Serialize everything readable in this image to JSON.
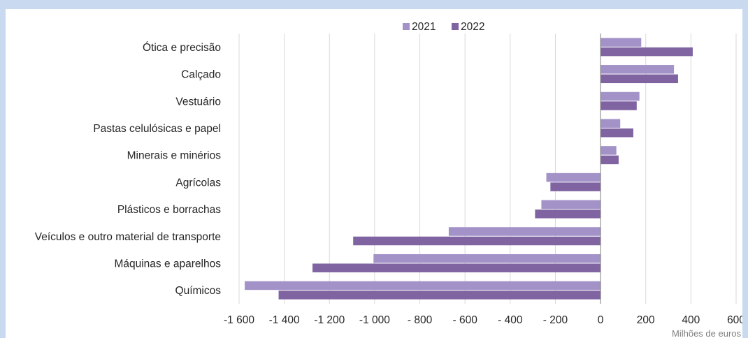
{
  "chart_data": {
    "type": "bar",
    "orientation": "horizontal",
    "categories": [
      "Ótica e precisão",
      "Calçado",
      "Vestuário",
      "Pastas celulósicas e papel",
      "Minerais e minérios",
      "Agrícolas",
      "Plásticos e borrachas",
      "Veículos e outro material de transporte",
      "Máquinas e aparelhos",
      "Químicos"
    ],
    "series": [
      {
        "name": "2021",
        "color": "#a392c8",
        "values": [
          180,
          325,
          172,
          87,
          70,
          -240,
          -262,
          -672,
          -1005,
          -1575
        ]
      },
      {
        "name": "2022",
        "color": "#8064a2",
        "values": [
          408,
          343,
          160,
          145,
          80,
          -222,
          -290,
          -1095,
          -1275,
          -1425
        ]
      }
    ],
    "xlim": [
      -1600,
      600
    ],
    "xticks": [
      -1600,
      -1400,
      -1200,
      -1000,
      -800,
      -600,
      -400,
      -200,
      0,
      200,
      400,
      600
    ],
    "xtick_labels": [
      "-1 600",
      "-1 400",
      "-1 200",
      "-1 000",
      "- 800",
      "- 600",
      "- 400",
      "- 200",
      "0",
      "200",
      "400",
      "600"
    ],
    "xlabel": "Milhões de euros",
    "ylabel": "",
    "title": "",
    "grid": true,
    "legend_position": "top"
  }
}
